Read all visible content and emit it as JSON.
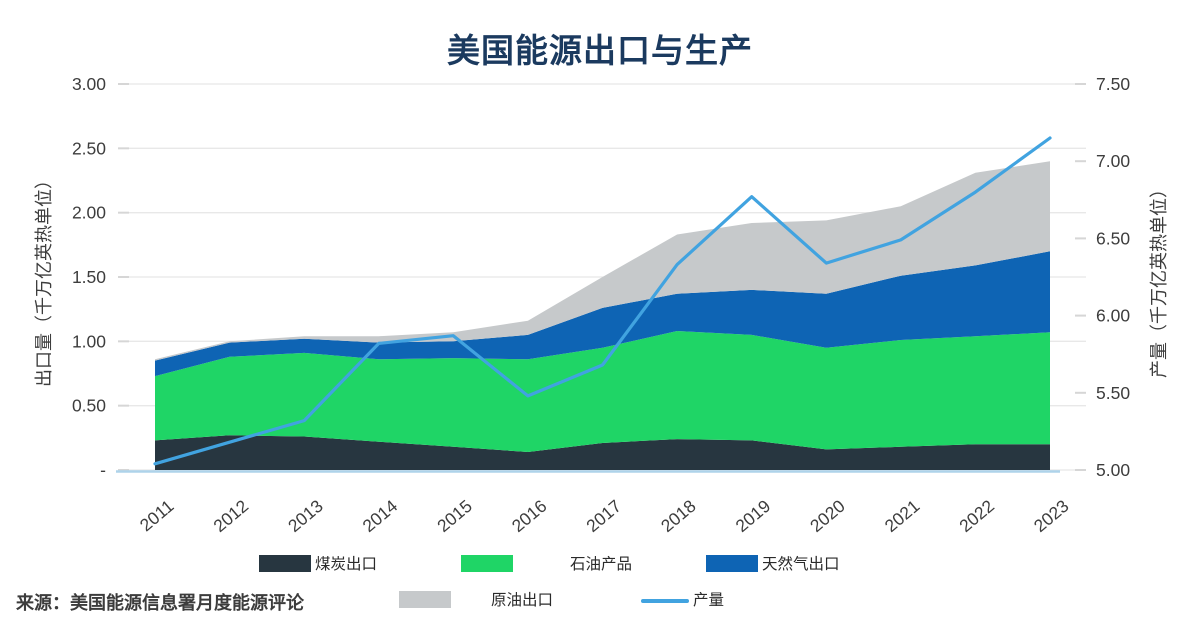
{
  "title": "美国能源出口与生产",
  "source": "来源：美国能源信息署月度能源评论",
  "colors": {
    "title_navy": "#1b3a5f",
    "coal_dark": "#273640",
    "petroleum_green": "#1fd566",
    "natural_gas_blue": "#0e64b4",
    "crude_gray": "#c6c9cb",
    "production_line_blue": "#41a3e0",
    "gridline": "#e8e8e8",
    "axis_baseline": "#aed3ea",
    "tick_text": "#3d3d3d"
  },
  "chart_data": {
    "type": "area",
    "title": "美国能源出口与生产",
    "categories": [
      2011,
      2012,
      2013,
      2014,
      2015,
      2016,
      2017,
      2018,
      2019,
      2020,
      2021,
      2022,
      2023
    ],
    "left_axis": {
      "label": "出口量（千万亿英热单位）",
      "min": 0,
      "max": 3,
      "ticks": [
        "3.00",
        "2.50",
        "2.00",
        "1.50",
        "1.00",
        "0.50",
        "-"
      ]
    },
    "right_axis": {
      "label": "产量（千万亿英热单位）",
      "min": 5,
      "max": 7.5,
      "ticks": [
        "7.50",
        "7.00",
        "6.50",
        "6.00",
        "5.50",
        "5.00"
      ]
    },
    "grid": true,
    "legend_position": "bottom",
    "series": [
      {
        "name": "煤炭出口",
        "kind": "area",
        "axis": "left",
        "color": "#273640",
        "values": [
          0.23,
          0.27,
          0.26,
          0.22,
          0.18,
          0.14,
          0.21,
          0.24,
          0.23,
          0.16,
          0.18,
          0.2,
          0.2
        ]
      },
      {
        "name": "石油产品",
        "kind": "area",
        "axis": "left",
        "color": "#1fd566",
        "values": [
          0.5,
          0.61,
          0.65,
          0.64,
          0.69,
          0.72,
          0.74,
          0.84,
          0.82,
          0.79,
          0.83,
          0.84,
          0.87
        ]
      },
      {
        "name": "天然气出口",
        "kind": "area",
        "axis": "left",
        "color": "#0e64b4",
        "values": [
          0.12,
          0.11,
          0.11,
          0.13,
          0.13,
          0.19,
          0.31,
          0.29,
          0.35,
          0.42,
          0.5,
          0.55,
          0.63
        ]
      },
      {
        "name": "原油出口",
        "kind": "area",
        "axis": "left",
        "color": "#c6c9cb",
        "values": [
          0.01,
          0.01,
          0.02,
          0.05,
          0.07,
          0.11,
          0.24,
          0.46,
          0.52,
          0.57,
          0.54,
          0.72,
          0.7
        ]
      },
      {
        "name": "产量",
        "kind": "line",
        "axis": "right",
        "color": "#41a3e0",
        "values": [
          5.04,
          5.18,
          5.32,
          5.82,
          5.87,
          5.48,
          5.68,
          6.33,
          6.77,
          6.34,
          6.49,
          6.8,
          7.15
        ]
      }
    ]
  },
  "legend": {
    "items": [
      {
        "label": "煤炭出口",
        "swatch": "area",
        "color": "#273640"
      },
      {
        "label": "石油产品",
        "swatch": "area",
        "color": "#1fd566"
      },
      {
        "label": "天然气出口",
        "swatch": "area",
        "color": "#0e64b4"
      },
      {
        "label": "原油出口",
        "swatch": "area",
        "color": "#c6c9cb"
      },
      {
        "label": "产量",
        "swatch": "line",
        "color": "#41a3e0"
      }
    ]
  }
}
